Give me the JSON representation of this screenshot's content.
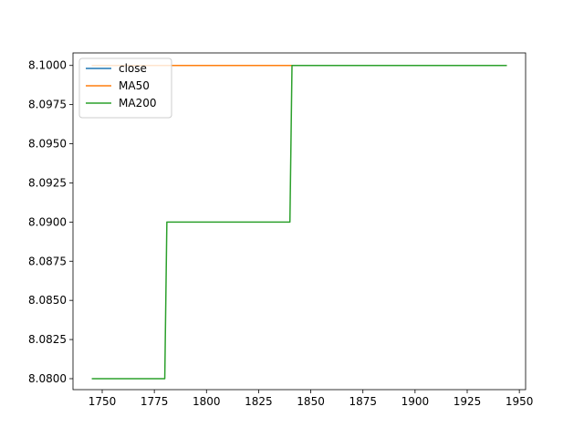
{
  "chart_data": {
    "type": "line",
    "title": "",
    "xlabel": "",
    "ylabel": "",
    "xlim": [
      1736,
      1953
    ],
    "ylim": [
      8.0793,
      8.1008
    ],
    "xticks": [
      1750,
      1775,
      1800,
      1825,
      1850,
      1875,
      1900,
      1925,
      1950
    ],
    "xtick_labels": [
      "1750",
      "1775",
      "1800",
      "1825",
      "1850",
      "1875",
      "1900",
      "1925",
      "1950"
    ],
    "yticks": [
      8.08,
      8.0825,
      8.085,
      8.0875,
      8.09,
      8.0925,
      8.095,
      8.0975,
      8.1
    ],
    "ytick_labels": [
      "8.0800",
      "8.0825",
      "8.0850",
      "8.0875",
      "8.0900",
      "8.0925",
      "8.0950",
      "8.0975",
      "8.1000"
    ],
    "grid": false,
    "legend_position": "top-left",
    "series": [
      {
        "name": "close",
        "color": "#1f77b4",
        "x": [
          1745,
          1944
        ],
        "y": [
          8.1,
          8.1
        ]
      },
      {
        "name": "MA50",
        "color": "#ff7f0e",
        "x": [
          1745,
          1944
        ],
        "y": [
          8.1,
          8.1
        ]
      },
      {
        "name": "MA200",
        "color": "#2ca02c",
        "x": [
          1745,
          1780,
          1781,
          1840,
          1841,
          1944
        ],
        "y": [
          8.08,
          8.08,
          8.09,
          8.09,
          8.1,
          8.1
        ]
      }
    ]
  }
}
